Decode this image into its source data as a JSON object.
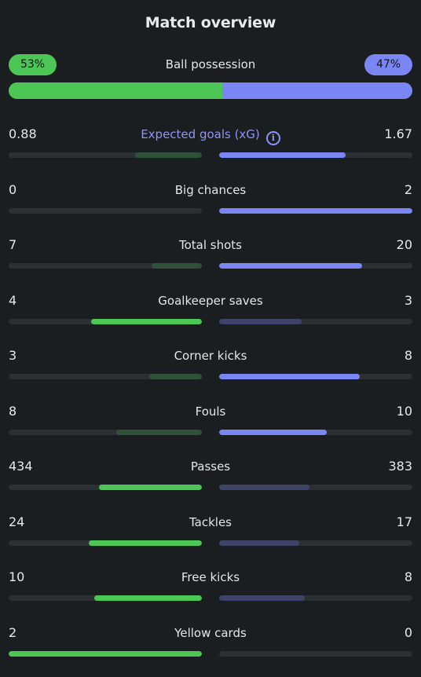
{
  "header": {
    "title": "Match overview"
  },
  "possession": {
    "label": "Ball possession",
    "home_label": "53%",
    "away_label": "47%",
    "home_pct": 53,
    "away_pct": 47
  },
  "colors": {
    "home": "#4cc655",
    "away": "#7b86f5",
    "home_dim": "#2f5138",
    "away_dim": "#3e4468",
    "track": "#2b3033",
    "background": "#1b1e21"
  },
  "stats": [
    {
      "label": "Expected goals (xG)",
      "home": "0.88",
      "away": "1.67",
      "home_value": 0.88,
      "away_value": 1.67,
      "info_icon": true,
      "accent": true
    },
    {
      "label": "Big chances",
      "home": "0",
      "away": "2",
      "home_value": 0,
      "away_value": 2
    },
    {
      "label": "Total shots",
      "home": "7",
      "away": "20",
      "home_value": 7,
      "away_value": 20
    },
    {
      "label": "Goalkeeper saves",
      "home": "4",
      "away": "3",
      "home_value": 4,
      "away_value": 3
    },
    {
      "label": "Corner kicks",
      "home": "3",
      "away": "8",
      "home_value": 3,
      "away_value": 8
    },
    {
      "label": "Fouls",
      "home": "8",
      "away": "10",
      "home_value": 8,
      "away_value": 10
    },
    {
      "label": "Passes",
      "home": "434",
      "away": "383",
      "home_value": 434,
      "away_value": 383
    },
    {
      "label": "Tackles",
      "home": "24",
      "away": "17",
      "home_value": 24,
      "away_value": 17
    },
    {
      "label": "Free kicks",
      "home": "10",
      "away": "8",
      "home_value": 10,
      "away_value": 8
    },
    {
      "label": "Yellow cards",
      "home": "2",
      "away": "0",
      "home_value": 2,
      "away_value": 0
    }
  ]
}
